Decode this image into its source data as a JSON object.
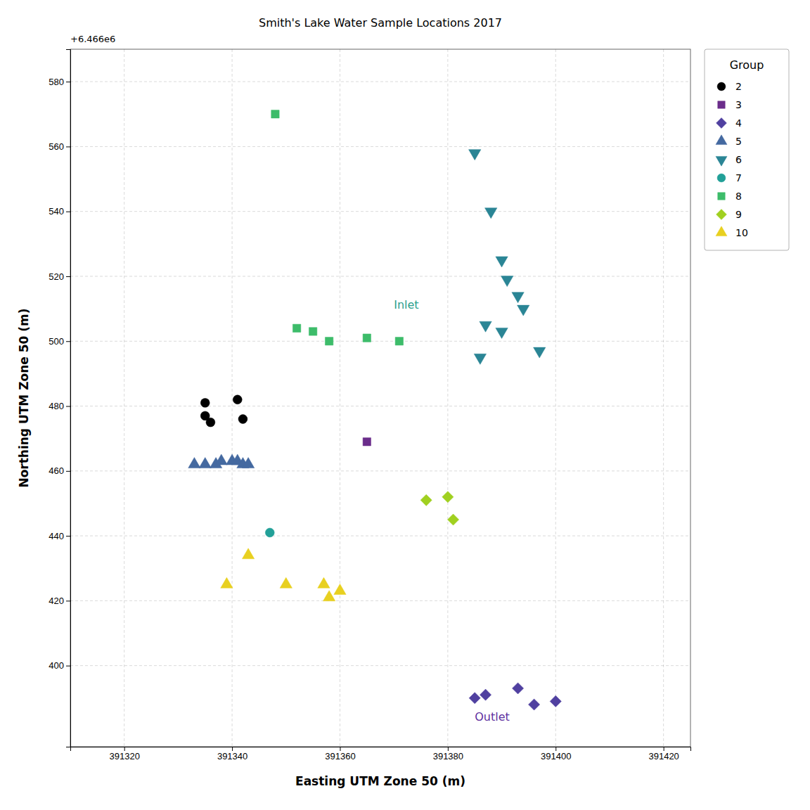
{
  "chart_data": {
    "type": "scatter",
    "title": "Smith's Lake Water Sample Locations 2017",
    "x_label": "Easting UTM Zone 50 (m)",
    "y_label": "Northing UTM Zone 50 (m)",
    "xlim": [
      391310,
      391425
    ],
    "ylim": [
      6466375,
      6466590
    ],
    "xticks": [
      391320,
      391340,
      391360,
      391380,
      391400,
      391420
    ],
    "yticks": [
      {
        "value": 6466400,
        "label": "400"
      },
      {
        "value": 6466420,
        "label": "420"
      },
      {
        "value": 6466440,
        "label": "440"
      },
      {
        "value": 6466460,
        "label": "460"
      },
      {
        "value": 6466480,
        "label": "480"
      },
      {
        "value": 6466500,
        "label": "500"
      },
      {
        "value": 6466520,
        "label": "520"
      },
      {
        "value": 6466540,
        "label": "540"
      },
      {
        "value": 6466560,
        "label": "560"
      },
      {
        "value": 6466580,
        "label": "580"
      }
    ],
    "y_tick_offset": "+6.466e6",
    "grid": true,
    "legend": "upper right",
    "legend_title": "Group",
    "series": [
      {
        "name": "2",
        "color": "#000000",
        "marker": "circle",
        "x": [
          391335,
          391341,
          391336,
          391342,
          391335
        ],
        "values": [
          6466481,
          6466482,
          6466475,
          6466476,
          6466477
        ]
      },
      {
        "name": "3",
        "color": "#6b2d8b",
        "marker": "square",
        "x": [
          391365
        ],
        "values": [
          6466469
        ]
      },
      {
        "name": "4",
        "color": "#5040a0",
        "marker": "diamond",
        "x": [
          391385,
          391387,
          391393,
          391396,
          391400
        ],
        "values": [
          6466390,
          6466391,
          6466393,
          6466388,
          6466389
        ]
      },
      {
        "name": "5",
        "color": "#4469a0",
        "marker": "triangle-up",
        "x": [
          391333,
          391335,
          391337,
          391338,
          391340,
          391341,
          391342,
          391343
        ],
        "values": [
          6466462,
          6466462,
          6466462,
          6466463,
          6466463,
          6466463,
          6466462,
          6466462
        ]
      },
      {
        "name": "6",
        "color": "#2a8595",
        "marker": "triangle-down",
        "x": [
          391385,
          391388,
          391390,
          391391,
          391393,
          391394,
          391387,
          391390,
          391397,
          391386
        ],
        "values": [
          6466558,
          6466540,
          6466525,
          6466519,
          6466514,
          6466510,
          6466505,
          6466503,
          6466497,
          6466495
        ]
      },
      {
        "name": "7",
        "color": "#22a098",
        "marker": "circle",
        "x": [
          391347
        ],
        "values": [
          6466441
        ]
      },
      {
        "name": "8",
        "color": "#3dbc6a",
        "marker": "square",
        "x": [
          391348,
          391352,
          391355,
          391358,
          391365,
          391371
        ],
        "values": [
          6466570,
          6466504,
          6466503,
          6466500,
          6466501,
          6466500
        ]
      },
      {
        "name": "9",
        "color": "#a0d020",
        "marker": "diamond",
        "x": [
          391376,
          391380,
          391381
        ],
        "values": [
          6466451,
          6466452,
          6466445
        ]
      },
      {
        "name": "10",
        "color": "#e8d020",
        "marker": "triangle-up",
        "x": [
          391343,
          391339,
          391350,
          391357,
          391360,
          391358
        ],
        "values": [
          6466434,
          6466425,
          6466425,
          6466425,
          6466423,
          6466421
        ]
      }
    ],
    "annotations": [
      {
        "text": "Inlet",
        "x": 391370,
        "y": 6466510,
        "color": "#2ca08e"
      },
      {
        "text": "Outlet",
        "x": 391385,
        "y": 6466383,
        "color": "#6030a0"
      }
    ]
  }
}
